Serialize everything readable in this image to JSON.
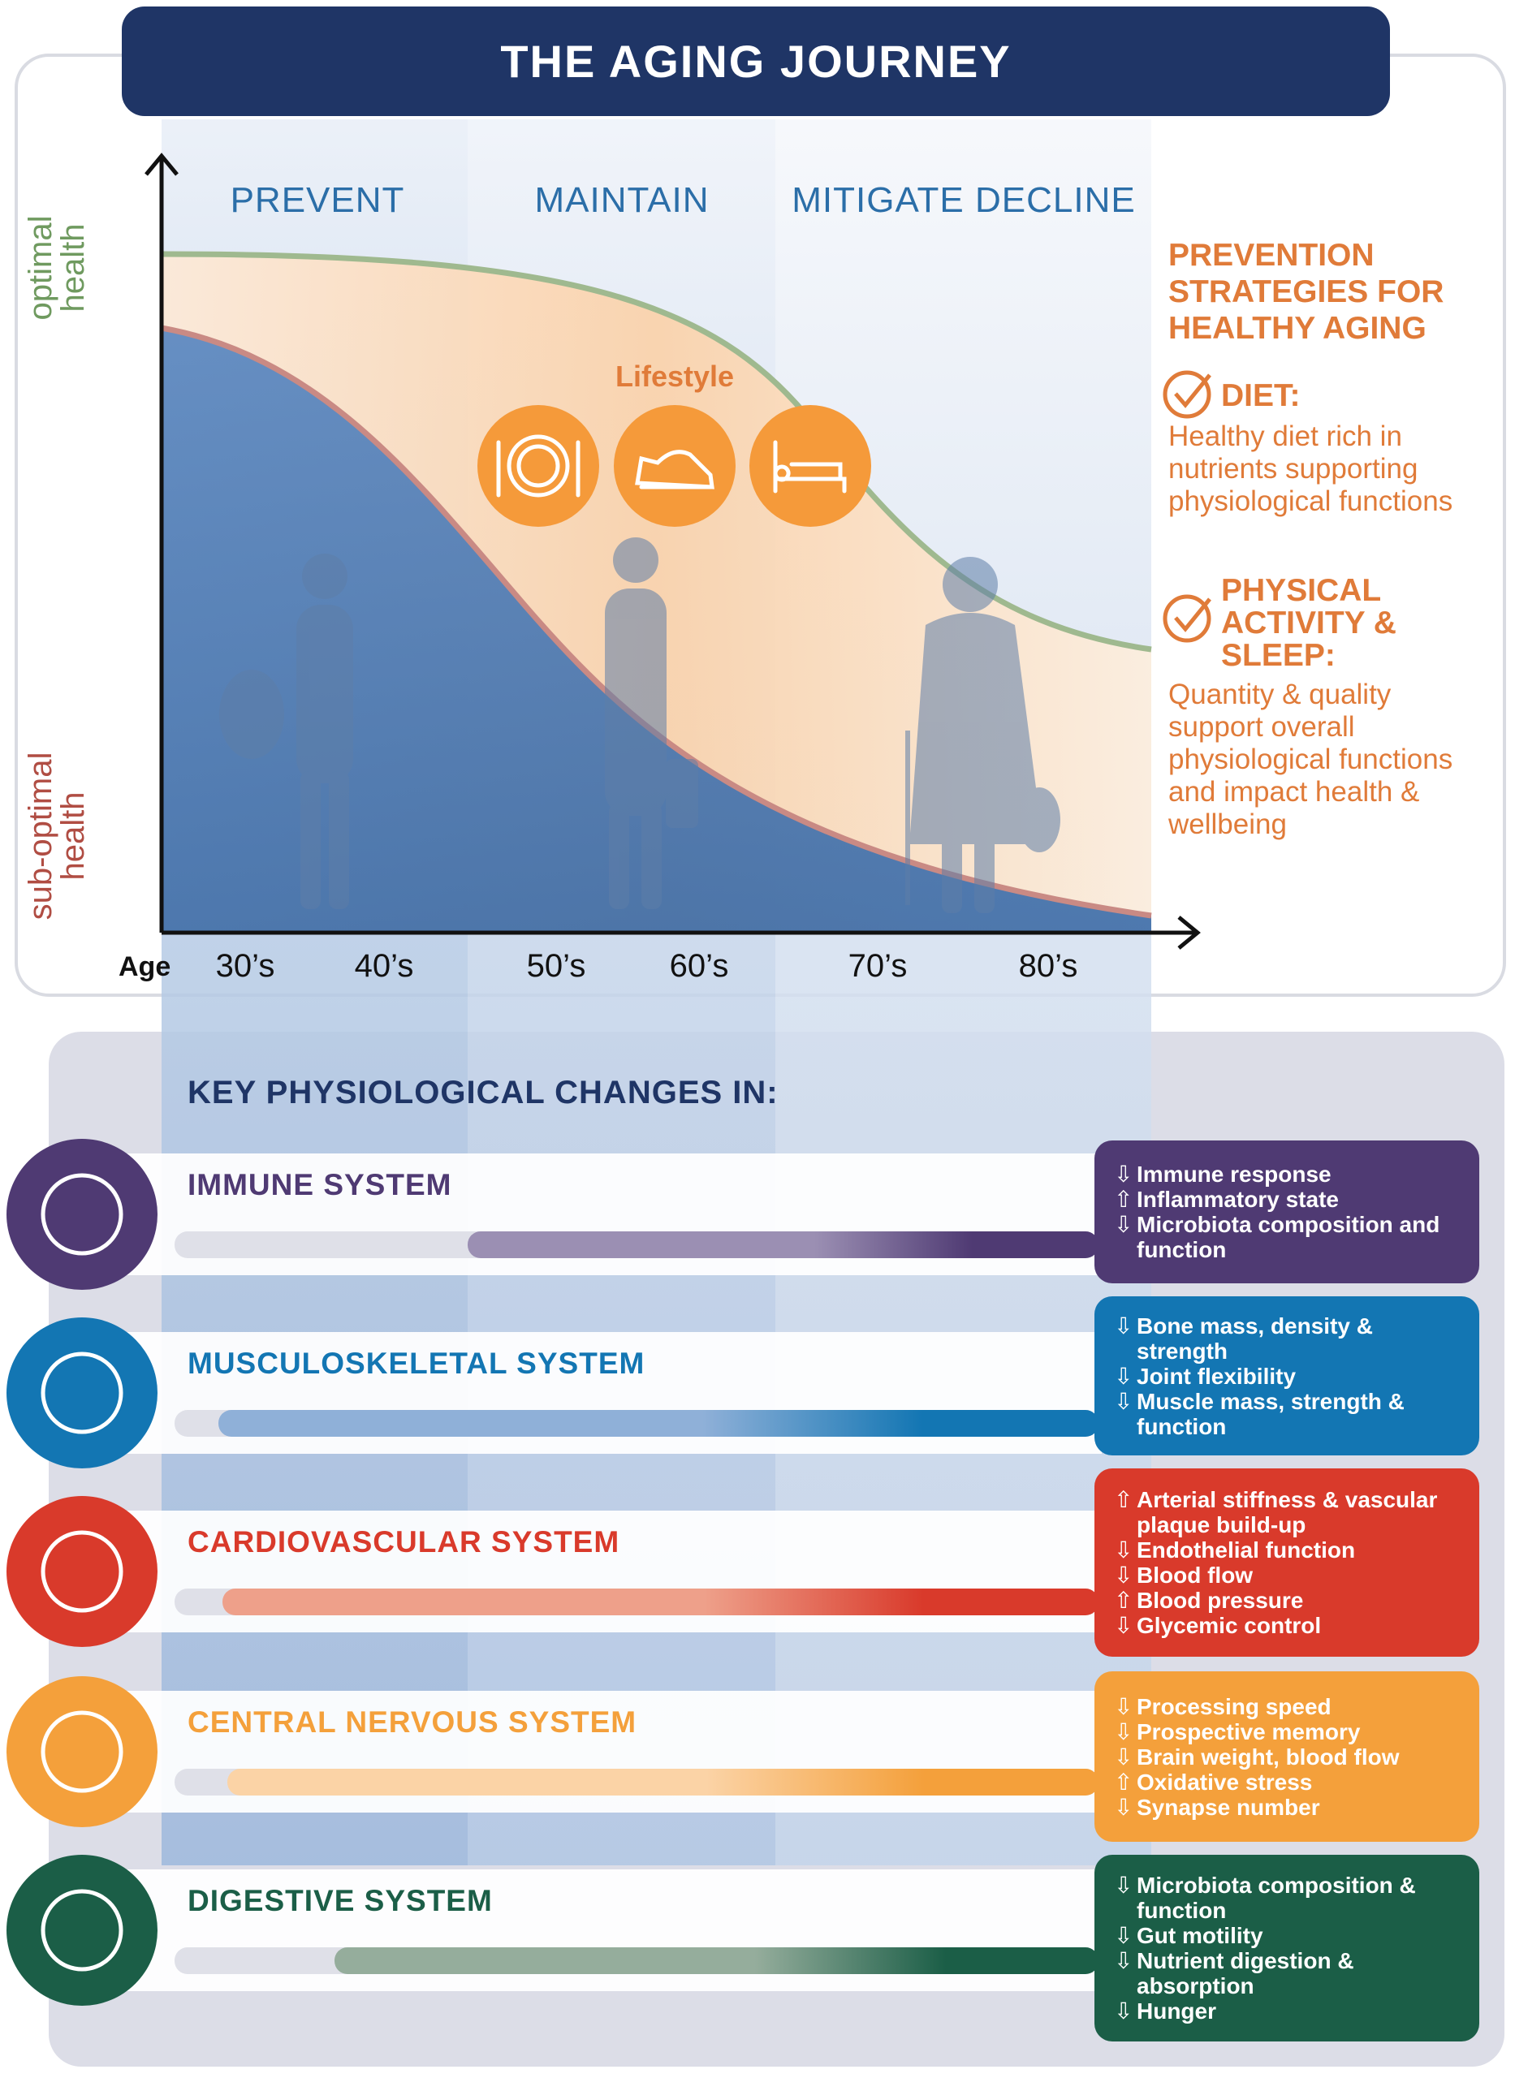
{
  "title": "THE AGING JOURNEY",
  "phases": [
    "PREVENT",
    "MAINTAIN",
    "MITIGATE DECLINE"
  ],
  "y_axis": {
    "top": "optimal health",
    "bottom": "sub-optimal health"
  },
  "x_axis": {
    "label": "Age",
    "ticks": [
      "30’s",
      "40’s",
      "50’s",
      "60’s",
      "70’s",
      "80’s"
    ]
  },
  "lifestyle": "Lifestyle",
  "strategies": {
    "title": "PREVENTION STRATEGIES FOR HEALTHY AGING",
    "items": [
      {
        "title": "DIET:",
        "text": "Healthy diet rich in nutrients supporting physiological functions"
      },
      {
        "title": "PHYSICAL ACTIVITY & SLEEP:",
        "text": "Quantity & quality support overall physiological functions and impact health & wellbeing"
      }
    ]
  },
  "changes": {
    "title": "KEY PHYSIOLOGICAL CHANGES IN:",
    "systems": [
      {
        "name": "IMMUNE SYSTEM",
        "items": [
          {
            "arrow": "⇩",
            "text": "Immune response"
          },
          {
            "arrow": "⇧",
            "text": "Inflammatory state"
          },
          {
            "arrow": "⇩",
            "text": "Microbiota composition and function"
          }
        ]
      },
      {
        "name": "MUSCULOSKELETAL SYSTEM",
        "items": [
          {
            "arrow": "⇩",
            "text": "Bone mass, density & strength"
          },
          {
            "arrow": "⇩",
            "text": "Joint flexibility"
          },
          {
            "arrow": "⇩",
            "text": "Muscle mass, strength & function"
          }
        ]
      },
      {
        "name": "CARDIOVASCULAR SYSTEM",
        "items": [
          {
            "arrow": "⇧",
            "text": "Arterial stiffness & vascular plaque build-up"
          },
          {
            "arrow": "⇩",
            "text": "Endothelial function"
          },
          {
            "arrow": "⇩",
            "text": "Blood flow"
          },
          {
            "arrow": "⇧",
            "text": "Blood pressure"
          },
          {
            "arrow": "⇩",
            "text": "Glycemic control"
          }
        ]
      },
      {
        "name": "CENTRAL NERVOUS SYSTEM",
        "items": [
          {
            "arrow": "⇩",
            "text": "Processing speed"
          },
          {
            "arrow": "⇩",
            "text": "Prospective memory"
          },
          {
            "arrow": "⇩",
            "text": "Brain weight, blood flow"
          },
          {
            "arrow": "⇧",
            "text": "Oxidative stress"
          },
          {
            "arrow": "⇩",
            "text": "Synapse number"
          }
        ]
      },
      {
        "name": "DIGESTIVE SYSTEM",
        "items": [
          {
            "arrow": "⇩",
            "text": "Microbiota composition & function"
          },
          {
            "arrow": "⇩",
            "text": "Gut motility"
          },
          {
            "arrow": "⇩",
            "text": "Nutrient digestion & absorption"
          },
          {
            "arrow": "⇩",
            "text": "Hunger"
          }
        ]
      }
    ]
  }
}
